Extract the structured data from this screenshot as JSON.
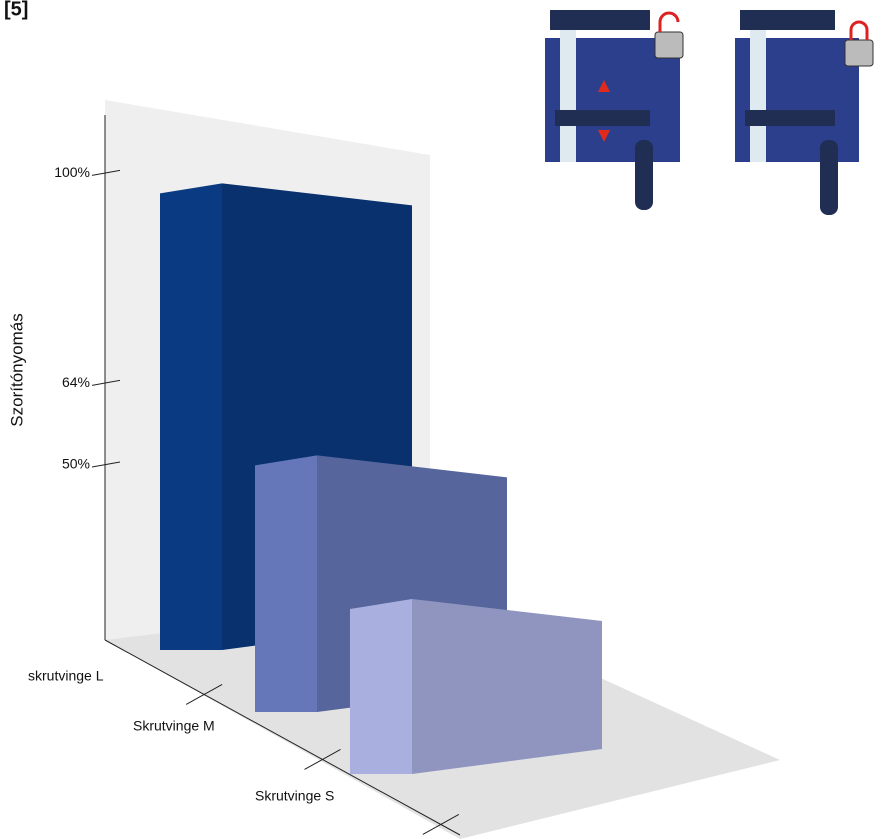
{
  "chart_data": {
    "type": "bar",
    "title": "[5]",
    "y_label": "Szorítónyomás",
    "categories": [
      "skrutvinge L",
      "Skrutvinge M",
      "Skrutvinge S"
    ],
    "values": [
      100,
      64,
      50
    ],
    "colors": [
      "#0a3a82",
      "#6577b8",
      "#a9b0e0"
    ],
    "ylim": [
      20,
      110
    ],
    "yticks": [
      {
        "value": 50,
        "label": "50%"
      },
      {
        "value": 64,
        "label": "64%"
      },
      {
        "value": 100,
        "label": "100%"
      }
    ]
  }
}
